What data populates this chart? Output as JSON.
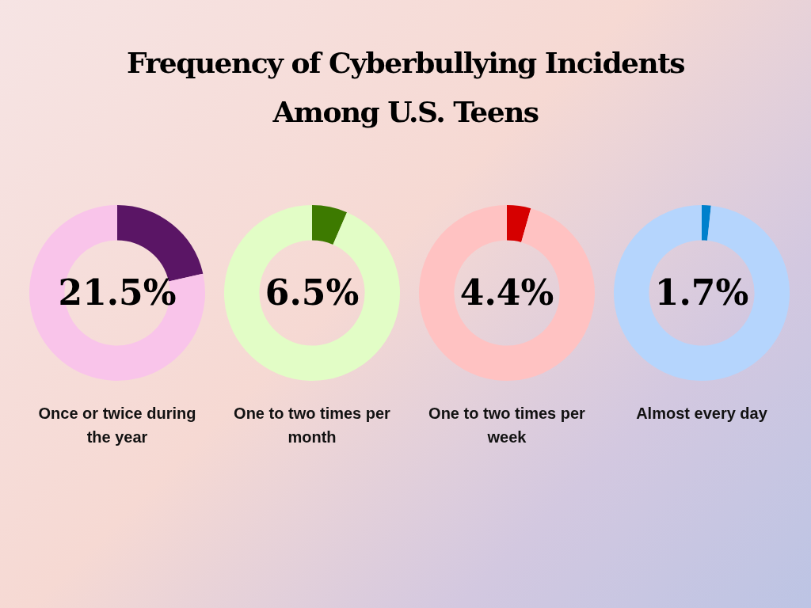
{
  "chart_data": [
    {
      "type": "donut",
      "title": "Frequency of Cyberbullying Incidents Among U.S. Teens",
      "xlabel": "Once or twice during the year",
      "categories": [
        null,
        null
      ],
      "values": [
        21.5,
        78.5
      ],
      "colors": [
        "#5a1565",
        "#f9c4ea"
      ],
      "value_labels": [
        "21.5%",
        null
      ]
    },
    {
      "type": "donut",
      "xlabel": "One to two times per month",
      "categories": [
        null,
        null
      ],
      "values": [
        6.5,
        93.5
      ],
      "colors": [
        "#3d7a00",
        "#e2fdc6"
      ],
      "value_labels": [
        "6.5%",
        null
      ]
    },
    {
      "type": "donut",
      "xlabel": "One to two times per week",
      "categories": [
        null,
        null
      ],
      "values": [
        4.4,
        95.6
      ],
      "colors": [
        "#d60000",
        "#ffc2c2"
      ],
      "value_labels": [
        "4.4%",
        null
      ]
    },
    {
      "type": "donut",
      "xlabel": "Almost every day",
      "categories": [
        null,
        null
      ],
      "values": [
        1.7,
        98.3
      ],
      "colors": [
        "#0080cc",
        "#b5d5fd"
      ],
      "value_labels": [
        "1.7%",
        null
      ]
    }
  ]
}
